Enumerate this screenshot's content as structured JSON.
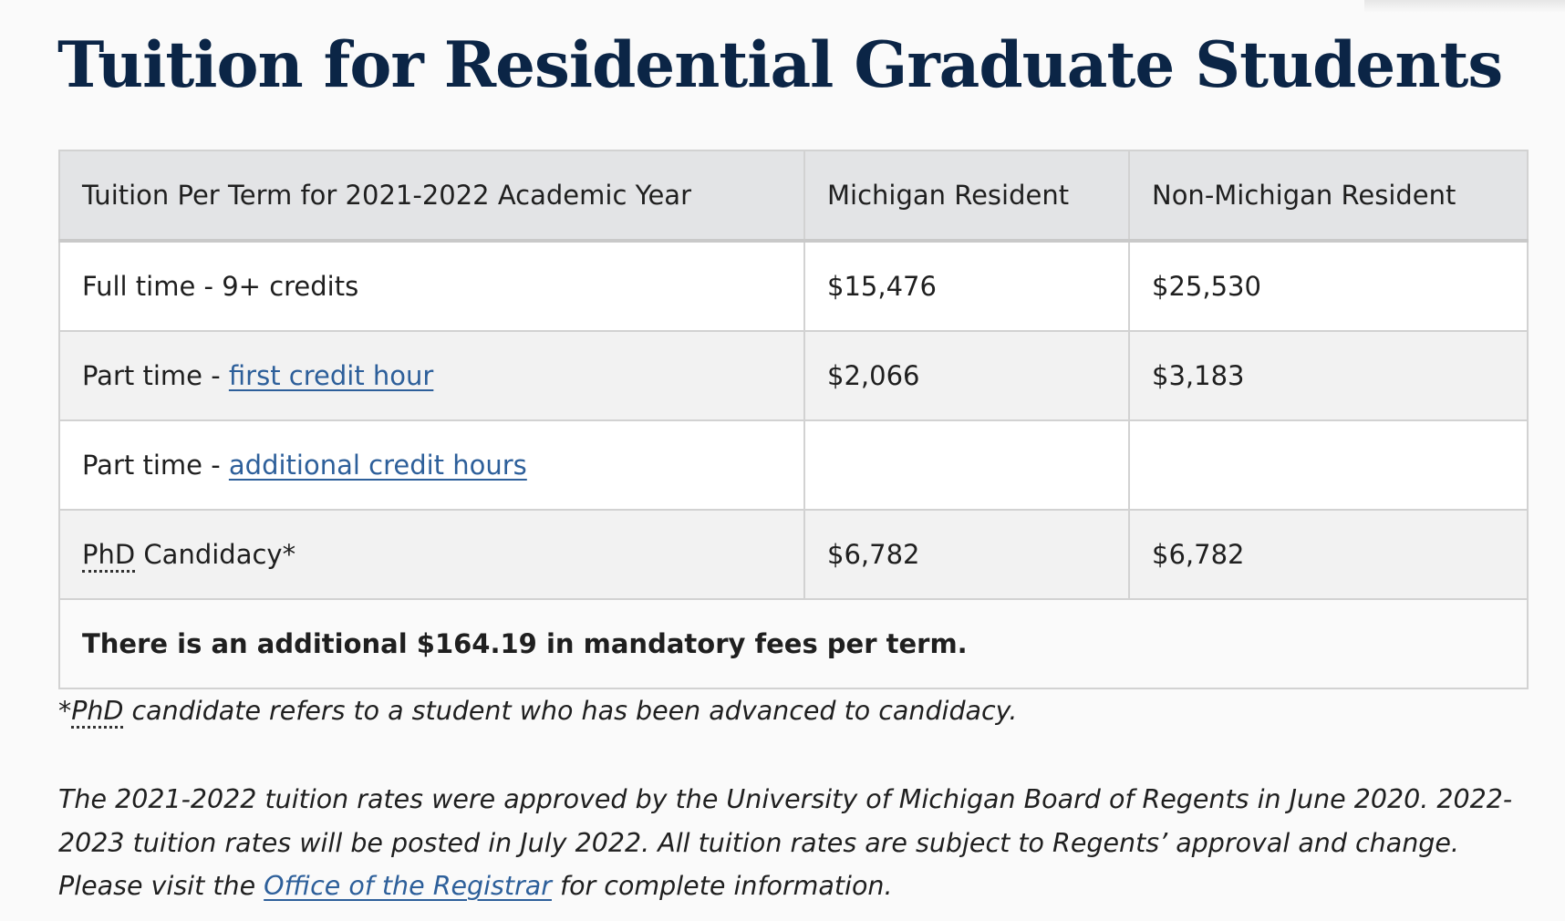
{
  "page": {
    "title": "Tuition for Residential Graduate Students"
  },
  "table": {
    "headers": [
      "Tuition Per Term for 2021-2022 Academic Year",
      "Michigan Resident",
      "Non-Michigan Resident"
    ],
    "rows": [
      {
        "label": "Full time - 9+ credits",
        "michigan": "$15,476",
        "non_michigan": "$25,530"
      },
      {
        "label_prefix": "Part time - ",
        "label_link": "first credit hour",
        "michigan": "$2,066",
        "non_michigan": "$3,183"
      },
      {
        "label_prefix": "Part time - ",
        "label_link": "additional credit hours",
        "michigan": "",
        "non_michigan": ""
      },
      {
        "label_abbr": "PhD",
        "label_suffix": " Candidacy*",
        "michigan": "$6,782",
        "non_michigan": "$6,782"
      }
    ],
    "fees_note": "There is an additional $164.19 in mandatory fees per term."
  },
  "footnote": {
    "prefix": "*",
    "abbr": "PhD",
    "text": " candidate refers to a student who has been advanced to candidacy."
  },
  "info": {
    "text_before": "The 2021-2022 tuition rates were approved by the University of Michigan Board of Regents in June 2020. 2022-2023 tuition rates will be posted in July 2022. All tuition rates are subject to Regents’ approval and change. Please visit the ",
    "link": "Office of the Registrar",
    "text_after": " for complete information."
  },
  "colors": {
    "title": "#0b2546",
    "link": "#2d5f9a",
    "header_bg": "#e3e4e6",
    "stripe_bg": "#f2f2f2"
  }
}
